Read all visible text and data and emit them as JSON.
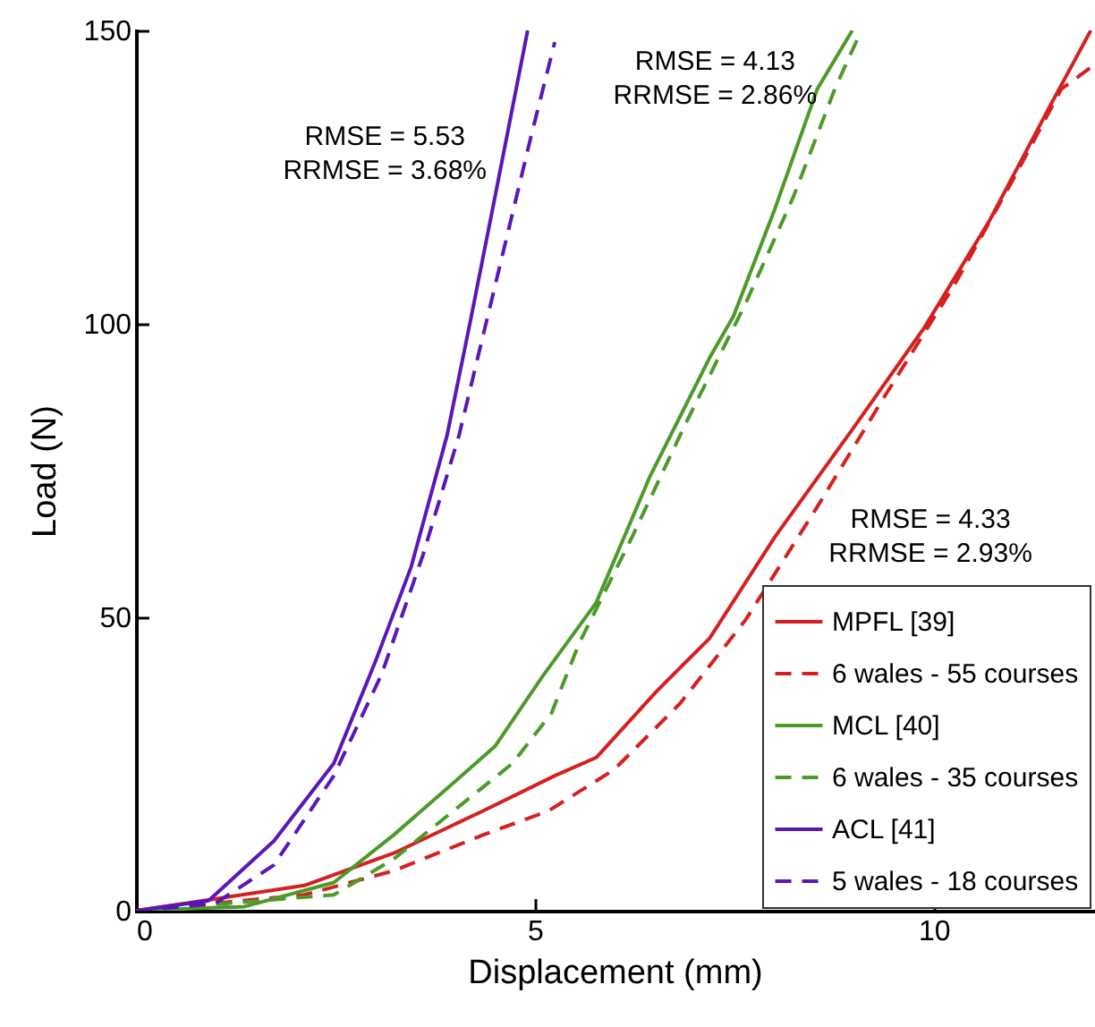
{
  "chart_data": {
    "type": "line",
    "xlabel": "Displacement (mm)",
    "ylabel": "Load (N)",
    "xlim": [
      0,
      12
    ],
    "ylim": [
      0,
      150
    ],
    "xticks": [
      0,
      5,
      10
    ],
    "yticks": [
      0,
      50,
      100,
      150
    ],
    "grid": false,
    "legend": "bottom right",
    "marker": "none",
    "series": [
      {
        "name": "MPFL [39]",
        "color": "#d42020",
        "line_style": "solid",
        "x": [
          0,
          2.11,
          3.23,
          4.35,
          5.25,
          5.77,
          6.52,
          7.19,
          8.01,
          8.98,
          9.88,
          10.7,
          11.45,
          11.97
        ],
        "values": [
          0,
          4.3,
          9.8,
          17,
          23,
          26.1,
          37.3,
          46.4,
          63.7,
          82,
          99.3,
          117.6,
          136.9,
          150
        ]
      },
      {
        "name": "6 wales - 55 courses",
        "color": "#d42020",
        "line_style": "dashed",
        "x": [
          0,
          2.11,
          3.23,
          4.35,
          5.17,
          5.99,
          6.82,
          7.64,
          8.54,
          9.36,
          10.25,
          11,
          11.6,
          12
        ],
        "values": [
          0,
          2.7,
          6.8,
          12.9,
          17,
          24,
          35.3,
          49.5,
          68.8,
          87.1,
          106.4,
          124.7,
          140,
          144
        ]
      },
      {
        "name": "MCL [40]",
        "color": "#4c9a2a",
        "line_style": "solid",
        "x": [
          0,
          1.36,
          2.48,
          3.23,
          3.83,
          4.5,
          5.1,
          5.77,
          6.44,
          7.19,
          7.49,
          8.01,
          8.54,
          8.98
        ],
        "values": [
          0,
          0.7,
          4.8,
          12.9,
          20,
          28,
          40,
          52.5,
          73.9,
          94.2,
          101.3,
          119.6,
          140,
          150
        ]
      },
      {
        "name": "6 wales - 35 courses",
        "color": "#4c9a2a",
        "line_style": "dashed",
        "x": [
          0,
          2.48,
          3.23,
          3.98,
          4.72,
          5.21,
          5.55,
          6.22,
          6.89,
          7.64,
          8.24,
          8.76,
          9.06
        ],
        "values": [
          0,
          2.7,
          8.8,
          17,
          25.1,
          33.7,
          45.4,
          63.7,
          83,
          103.4,
          121.6,
          140,
          149
        ]
      },
      {
        "name": "ACL [41]",
        "color": "#5a17b8",
        "line_style": "solid",
        "x": [
          0,
          0.91,
          1.73,
          2.48,
          3,
          3.45,
          3.9,
          4.2,
          4.5,
          4.91
        ],
        "values": [
          0,
          1.7,
          11.9,
          25.1,
          42.4,
          58.6,
          81,
          101,
          121.6,
          150
        ]
      },
      {
        "name": "5 wales - 18 courses",
        "color": "#5a17b8",
        "line_style": "dashed",
        "x": [
          0,
          0.99,
          1.73,
          2.48,
          3.08,
          3.6,
          4.05,
          4.5,
          4.95,
          5.25
        ],
        "values": [
          0,
          1.2,
          7.8,
          23,
          40.3,
          60.7,
          81,
          106.4,
          131.8,
          148
        ]
      }
    ],
    "annotations": [
      "RMSE = 5.53\nRRMSE = 3.68%",
      "RMSE = 4.13\nRRMSE = 2.86%",
      "RMSE = 4.33\nRRMSE = 2.93%"
    ]
  }
}
